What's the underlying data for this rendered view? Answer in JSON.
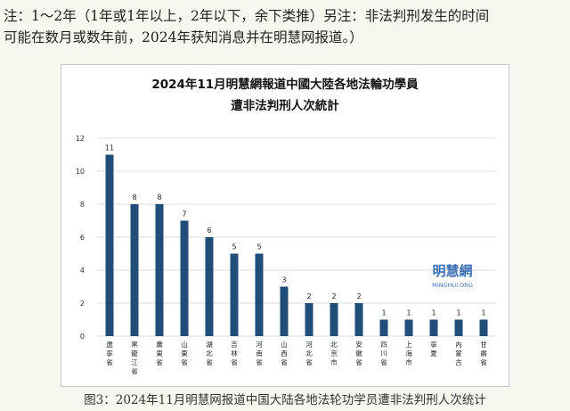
{
  "note": {
    "line1": "注：1～2年（1年或1年以上，2年以下，余下类推）另注：非法判刑发生的时间",
    "line2": "可能在数月或数年前，2024年获知消息并在明慧网报道。）"
  },
  "caption": "图3：2024年11月明慧网报道中国大陆各地法轮功学员遭非法判刑人次统计",
  "watermark": {
    "name": "明慧網",
    "site": "MINGHUI.ORG"
  },
  "colors": {
    "bar": "#1f4e79",
    "grid": "#dddddd",
    "watermark": "#3d6fb6"
  },
  "chart_data": {
    "type": "bar",
    "title_lines": [
      "2024年11月明慧網報道中國大陸各地法輪功學員",
      "遭非法判刑人次統計"
    ],
    "categories": [
      "遼寧省",
      "黑龍江省",
      "廣東省",
      "山東省",
      "湖北省",
      "吉林省",
      "河南省",
      "山西省",
      "河北省",
      "北京市",
      "安徽省",
      "四川省",
      "上海市",
      "寧夏",
      "內蒙古",
      "甘肅省"
    ],
    "values": [
      11,
      8,
      8,
      7,
      6,
      5,
      5,
      3,
      2,
      2,
      2,
      1,
      1,
      1,
      1,
      1
    ],
    "ylim": [
      0,
      12
    ],
    "yticks": [
      0,
      2,
      4,
      6,
      8,
      10,
      12
    ],
    "grid": true
  }
}
